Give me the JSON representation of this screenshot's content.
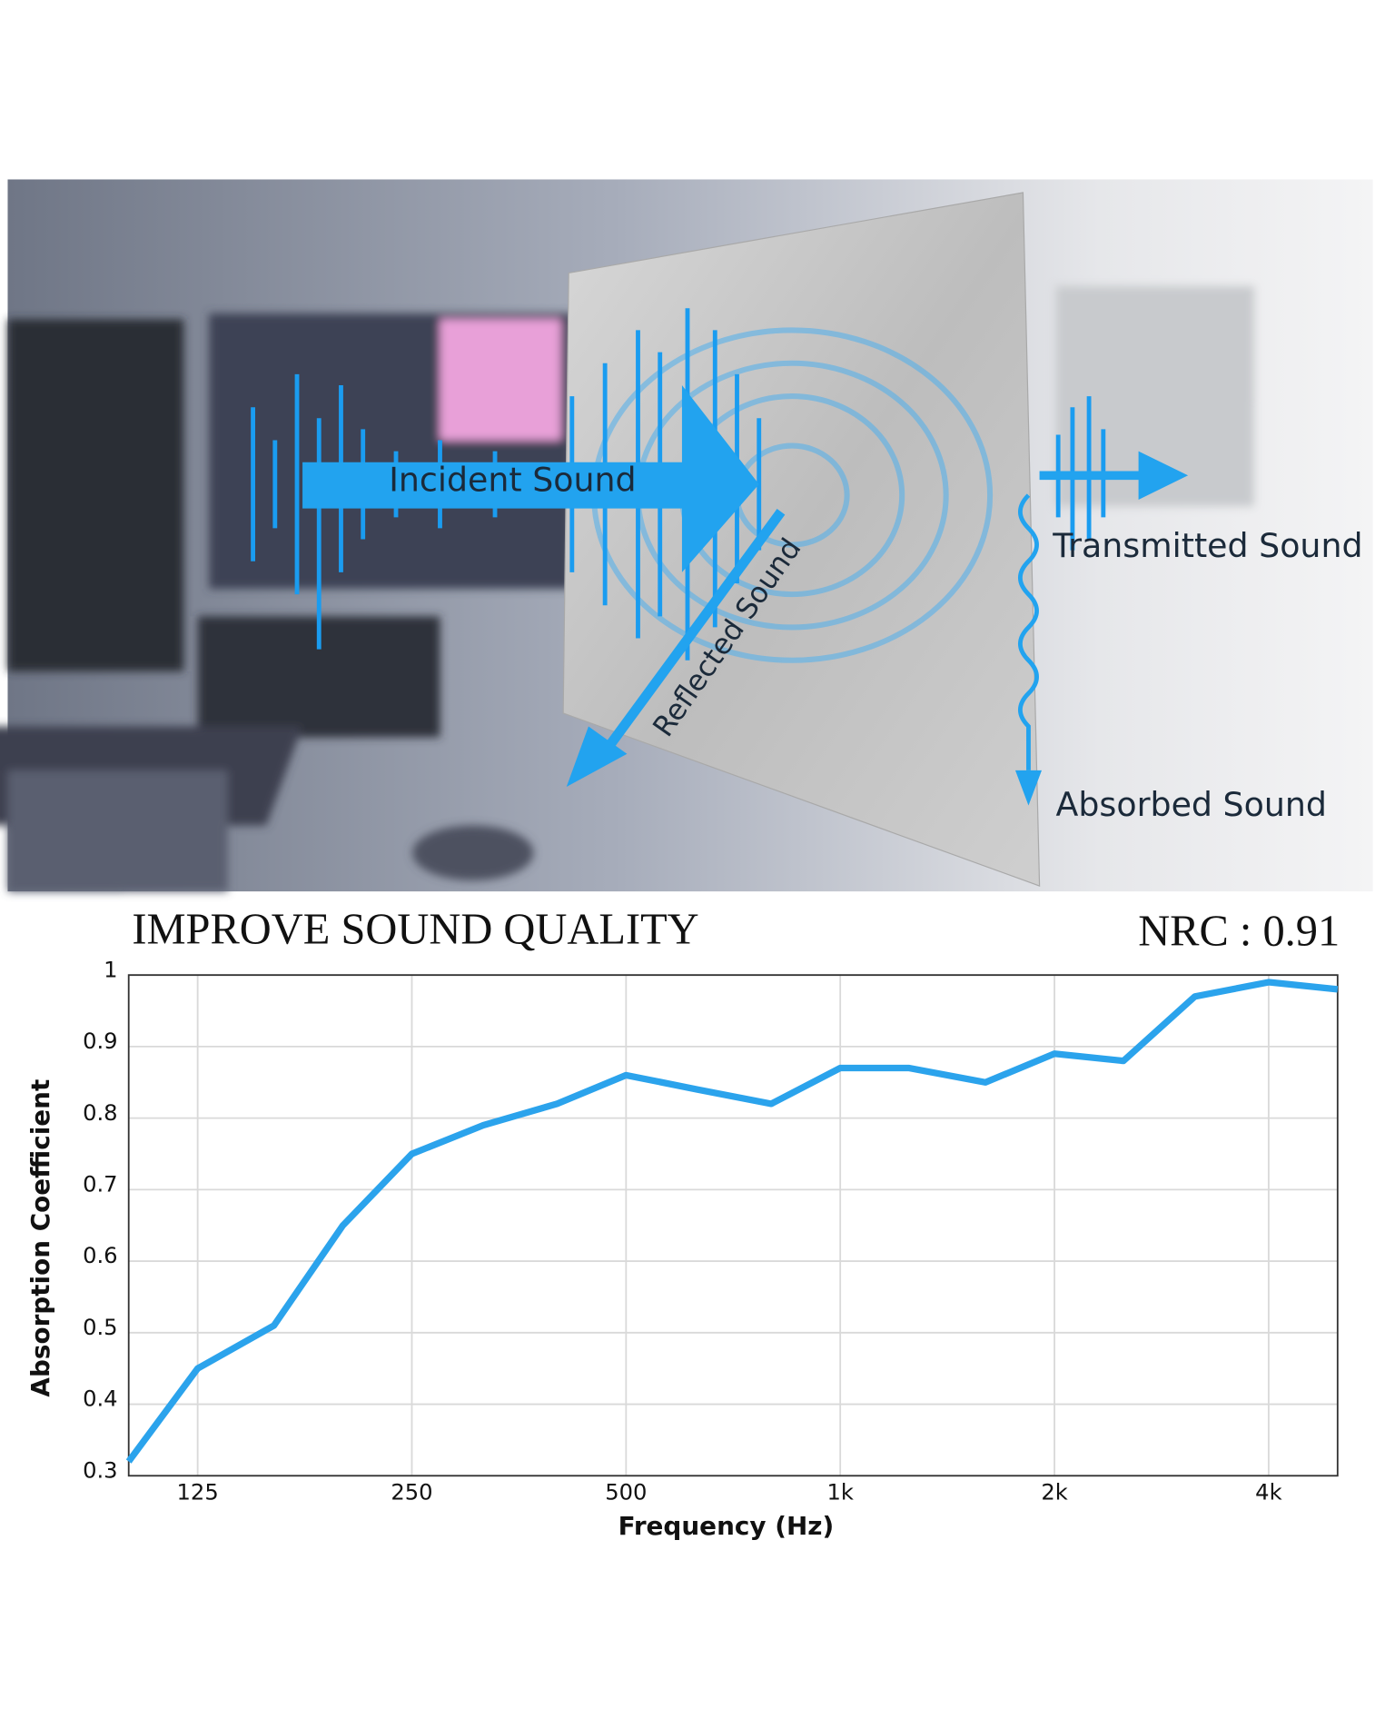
{
  "illustration": {
    "labels": [
      "Incident Sound",
      "Reflected Sound",
      "Transmitted Sound",
      "Absorbed Sound"
    ]
  },
  "chart_data": {
    "type": "line",
    "title": "IMPROVE SOUND QUALITY",
    "annotation": "NRC : 0.91",
    "x_label": "Frequency (Hz)",
    "y_label": "Absorption Coefficient",
    "log_x": true,
    "grid": true,
    "x": [
      100,
      125,
      160,
      200,
      250,
      315,
      400,
      500,
      630,
      800,
      1000,
      1250,
      1600,
      2000,
      2500,
      3150,
      4000,
      5000
    ],
    "series": [
      {
        "color": "#2ba3ec",
        "values": [
          0.32,
          0.45,
          0.51,
          0.65,
          0.75,
          0.79,
          0.82,
          0.86,
          0.84,
          0.82,
          0.87,
          0.87,
          0.85,
          0.89,
          0.88,
          0.97,
          0.99,
          0.98
        ]
      }
    ],
    "xlim": [
      100,
      5000
    ],
    "ylim": [
      0.3,
      1
    ],
    "xticks": [
      125,
      250,
      500,
      {
        "value": 1000,
        "label": "1k"
      },
      {
        "value": 2000,
        "label": "2k"
      },
      {
        "value": 4000,
        "label": "4k"
      }
    ],
    "yticks": [
      0.3,
      0.4,
      0.5,
      0.6,
      0.7,
      0.8,
      0.9,
      1
    ]
  }
}
